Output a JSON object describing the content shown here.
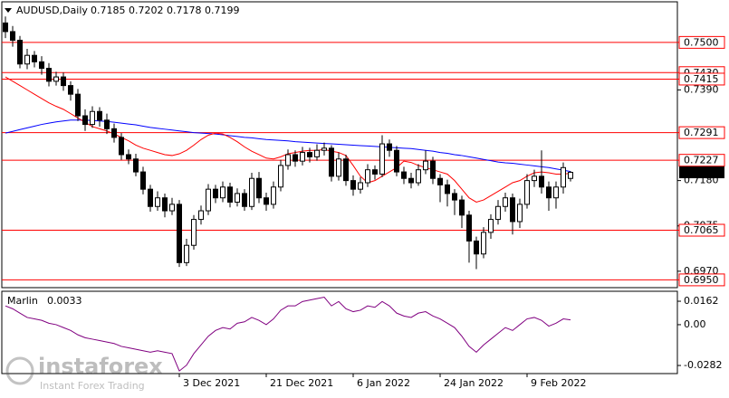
{
  "chart_data": {
    "type": "candlestick",
    "symbol": "AUDUSD,Daily",
    "categories": [
      null,
      null,
      null,
      null,
      null,
      null,
      null,
      null,
      null,
      null,
      null,
      null,
      null,
      null,
      null,
      null,
      null,
      null,
      null,
      null,
      null,
      null,
      null,
      null,
      "3 Dec 2021",
      null,
      null,
      null,
      null,
      null,
      null,
      null,
      null,
      null,
      null,
      null,
      "21 Dec 2021",
      null,
      null,
      null,
      null,
      null,
      null,
      null,
      null,
      null,
      null,
      null,
      "6 Jan 2022",
      null,
      null,
      null,
      null,
      null,
      null,
      null,
      null,
      null,
      null,
      null,
      "24 Jan 2022",
      null,
      null,
      null,
      null,
      null,
      null,
      null,
      null,
      null,
      null,
      null,
      "9 Feb 2022",
      null,
      null,
      null,
      null,
      null,
      null
    ],
    "open": [
      0.7545,
      0.7525,
      0.7505,
      0.745,
      0.747,
      0.7455,
      0.744,
      0.741,
      0.742,
      0.74,
      0.738,
      0.733,
      0.731,
      0.734,
      0.732,
      0.73,
      0.728,
      0.724,
      0.723,
      0.72,
      0.716,
      0.712,
      0.714,
      0.711,
      0.7125,
      0.699,
      0.703,
      0.709,
      0.711,
      0.716,
      0.714,
      0.7165,
      0.713,
      0.715,
      0.712,
      0.7185,
      0.714,
      0.7125,
      0.7165,
      0.7215,
      0.724,
      0.7225,
      0.7245,
      0.7235,
      0.725,
      0.7255,
      0.719,
      0.723,
      0.718,
      0.716,
      0.7175,
      0.7205,
      0.7195,
      0.7265,
      0.725,
      0.72,
      0.7185,
      0.7175,
      0.7205,
      0.7225,
      0.7185,
      0.717,
      0.715,
      0.7135,
      0.71,
      0.704,
      0.701,
      0.706,
      0.709,
      0.712,
      0.714,
      0.7085,
      0.7125,
      0.718,
      0.719,
      0.7165,
      0.714,
      0.7165,
      0.7185
    ],
    "high": [
      0.756,
      0.7538,
      0.7515,
      0.7485,
      0.748,
      0.7468,
      0.7452,
      0.7432,
      0.743,
      0.741,
      0.7392,
      0.7345,
      0.7352,
      0.735,
      0.7335,
      0.7312,
      0.729,
      0.7252,
      0.7242,
      0.7212,
      0.717,
      0.7155,
      0.715,
      0.714,
      0.7135,
      0.7045,
      0.71,
      0.7122,
      0.7172,
      0.717,
      0.7178,
      0.7175,
      0.7162,
      0.716,
      0.7198,
      0.72,
      0.7152,
      0.7178,
      0.7228,
      0.7252,
      0.725,
      0.7258,
      0.7256,
      0.7264,
      0.7268,
      0.7262,
      0.7245,
      0.724,
      0.7192,
      0.7188,
      0.7218,
      0.7215,
      0.7285,
      0.7275,
      0.726,
      0.7212,
      0.7198,
      0.7218,
      0.725,
      0.7235,
      0.7195,
      0.7182,
      0.716,
      0.7145,
      0.711,
      0.705,
      0.7072,
      0.7102,
      0.7135,
      0.7152,
      0.715,
      0.7138,
      0.7195,
      0.7205,
      0.725,
      0.7178,
      0.7178,
      0.7222,
      0.7202
    ],
    "low": [
      0.751,
      0.749,
      0.744,
      0.7438,
      0.7442,
      0.7425,
      0.7398,
      0.74,
      0.7388,
      0.7365,
      0.7318,
      0.7295,
      0.7302,
      0.7305,
      0.7288,
      0.7268,
      0.7228,
      0.7218,
      0.719,
      0.7148,
      0.7108,
      0.711,
      0.7095,
      0.71,
      0.698,
      0.6982,
      0.702,
      0.7078,
      0.71,
      0.7128,
      0.713,
      0.7118,
      0.712,
      0.711,
      0.7112,
      0.7128,
      0.711,
      0.7115,
      0.7155,
      0.7205,
      0.7212,
      0.7215,
      0.7222,
      0.7226,
      0.7238,
      0.7178,
      0.718,
      0.7168,
      0.7145,
      0.715,
      0.7165,
      0.7182,
      0.7188,
      0.7235,
      0.719,
      0.7172,
      0.7162,
      0.7168,
      0.7195,
      0.7172,
      0.713,
      0.712,
      0.71,
      0.707,
      0.699,
      0.6975,
      0.7,
      0.7045,
      0.7078,
      0.7108,
      0.7055,
      0.707,
      0.7115,
      0.7165,
      0.715,
      0.711,
      0.7115,
      0.715,
      0.7178
    ],
    "close": [
      0.7525,
      0.7505,
      0.745,
      0.747,
      0.7455,
      0.744,
      0.741,
      0.742,
      0.74,
      0.738,
      0.733,
      0.731,
      0.734,
      0.732,
      0.73,
      0.728,
      0.724,
      0.723,
      0.72,
      0.716,
      0.712,
      0.714,
      0.711,
      0.7125,
      0.699,
      0.703,
      0.709,
      0.711,
      0.716,
      0.714,
      0.7165,
      0.713,
      0.715,
      0.712,
      0.7185,
      0.714,
      0.7125,
      0.7165,
      0.7215,
      0.724,
      0.7225,
      0.7245,
      0.7235,
      0.725,
      0.7255,
      0.719,
      0.723,
      0.718,
      0.716,
      0.7175,
      0.7205,
      0.7195,
      0.7265,
      0.725,
      0.72,
      0.7185,
      0.7175,
      0.7205,
      0.7225,
      0.7185,
      0.717,
      0.715,
      0.7135,
      0.71,
      0.704,
      0.701,
      0.706,
      0.709,
      0.712,
      0.714,
      0.7085,
      0.7125,
      0.718,
      0.719,
      0.7165,
      0.714,
      0.7165,
      0.721,
      0.7199
    ],
    "lines": [
      {
        "color": "#0000ff",
        "values": [
          0.729,
          0.7294,
          0.7298,
          0.7302,
          0.7306,
          0.731,
          0.7313,
          0.7316,
          0.7318,
          0.732,
          0.732,
          0.732,
          0.7319,
          0.7318,
          0.7317,
          0.7315,
          0.7313,
          0.7311,
          0.7309,
          0.7306,
          0.7303,
          0.7301,
          0.7299,
          0.7297,
          0.7295,
          0.7293,
          0.7291,
          0.729,
          0.7289,
          0.7288,
          0.7286,
          0.7284,
          0.7282,
          0.728,
          0.7279,
          0.7277,
          0.7275,
          0.7274,
          0.7273,
          0.7272,
          0.727,
          0.7269,
          0.7268,
          0.7267,
          0.7266,
          0.7265,
          0.7264,
          0.7263,
          0.7262,
          0.7261,
          0.726,
          0.7259,
          0.7258,
          0.7257,
          0.7256,
          0.7255,
          0.7254,
          0.7252,
          0.725,
          0.7248,
          0.7245,
          0.7243,
          0.724,
          0.7238,
          0.7235,
          0.7232,
          0.7229,
          0.7226,
          0.7223,
          0.7221,
          0.722,
          0.7218,
          0.7216,
          0.7214,
          0.7212,
          0.721,
          0.7207,
          0.7204,
          0.7201
        ]
      },
      {
        "color": "#ff0000",
        "values": [
          0.742,
          0.741,
          0.74,
          0.739,
          0.738,
          0.737,
          0.736,
          0.7352,
          0.7345,
          0.7335,
          0.7325,
          0.7315,
          0.7305,
          0.73,
          0.7295,
          0.7288,
          0.728,
          0.7272,
          0.7262,
          0.7255,
          0.725,
          0.7245,
          0.724,
          0.7238,
          0.7242,
          0.725,
          0.7262,
          0.7275,
          0.7285,
          0.729,
          0.7288,
          0.728,
          0.727,
          0.7258,
          0.7248,
          0.724,
          0.7232,
          0.723,
          0.7235,
          0.7242,
          0.7245,
          0.7248,
          0.725,
          0.725,
          0.7252,
          0.7248,
          0.7245,
          0.7238,
          0.7215,
          0.719,
          0.7175,
          0.718,
          0.719,
          0.72,
          0.721,
          0.7225,
          0.7222,
          0.7215,
          0.721,
          0.7205,
          0.72,
          0.7195,
          0.718,
          0.716,
          0.714,
          0.713,
          0.7135,
          0.7145,
          0.7155,
          0.7165,
          0.7175,
          0.718,
          0.719,
          0.7198,
          0.72,
          0.7198,
          0.7195,
          0.7195,
          0.7197
        ]
      }
    ],
    "ylim": [
      0.6932,
      0.7594
    ],
    "yticks": [
      {
        "value": 0.739,
        "label": "0.7390"
      },
      {
        "value": 0.718,
        "label": "0.7180"
      },
      {
        "value": 0.7075,
        "label": "0.7075"
      },
      {
        "value": 0.697,
        "label": "0.6970"
      }
    ],
    "levels": [
      {
        "value": 0.75,
        "label": "0.7500"
      },
      {
        "value": 0.743,
        "label": "0.7430"
      },
      {
        "value": 0.7415,
        "label": "0.7415"
      },
      {
        "value": 0.7291,
        "label": "0.7291"
      },
      {
        "value": 0.7227,
        "label": "0.7227"
      },
      {
        "value": 0.7065,
        "label": "0.7065"
      },
      {
        "value": 0.695,
        "label": "0.6950"
      }
    ],
    "level_color": "#ff0000",
    "indicator": {
      "name": "Marlin",
      "value": 0.0033,
      "color": "#800080",
      "values": [
        0.013,
        0.011,
        0.008,
        0.005,
        0.004,
        0.003,
        0.001,
        0.0,
        -0.002,
        -0.004,
        -0.007,
        -0.009,
        -0.01,
        -0.011,
        -0.012,
        -0.013,
        -0.015,
        -0.016,
        -0.017,
        -0.018,
        -0.019,
        -0.018,
        -0.019,
        -0.02,
        -0.032,
        -0.028,
        -0.02,
        -0.014,
        -0.008,
        -0.004,
        -0.002,
        -0.003,
        0.001,
        0.002,
        0.005,
        0.003,
        0.0,
        0.004,
        0.01,
        0.013,
        0.013,
        0.016,
        0.017,
        0.018,
        0.019,
        0.013,
        0.016,
        0.011,
        0.009,
        0.01,
        0.013,
        0.012,
        0.016,
        0.013,
        0.008,
        0.006,
        0.005,
        0.008,
        0.009,
        0.006,
        0.004,
        0.001,
        -0.002,
        -0.008,
        -0.015,
        -0.019,
        -0.014,
        -0.01,
        -0.006,
        -0.002,
        -0.004,
        0.0,
        0.004,
        0.005,
        0.003,
        -0.001,
        0.001,
        0.004,
        0.0033
      ],
      "ylim": [
        -0.0338,
        0.0231
      ],
      "yticks": [
        0.0162,
        {
          "value": 0,
          "label": "0.00"
        },
        -0.0282
      ]
    },
    "watermark": {
      "brand": "instaforex",
      "tagline": "Instant Forex Trading"
    }
  }
}
